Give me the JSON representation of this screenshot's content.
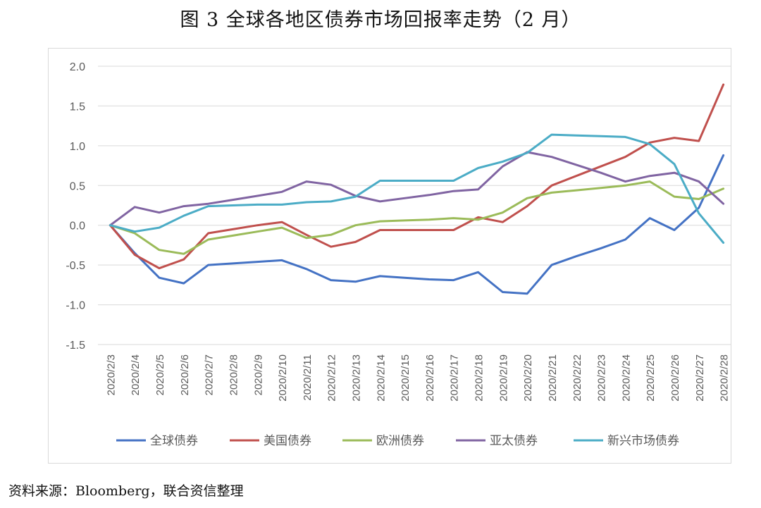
{
  "title": "图 3 全球各地区债券市场回报率走势（2 月）",
  "source": "资料来源：Bloomberg，联合资信整理",
  "chart_data": {
    "type": "line",
    "x": [
      "2020/2/3",
      "2020/2/4",
      "2020/2/5",
      "2020/2/6",
      "2020/2/7",
      "2020/2/8",
      "2020/2/9",
      "2020/2/10",
      "2020/2/11",
      "2020/2/12",
      "2020/2/13",
      "2020/2/14",
      "2020/2/15",
      "2020/2/16",
      "2020/2/17",
      "2020/2/18",
      "2020/2/19",
      "2020/2/20",
      "2020/2/21",
      "2020/2/22",
      "2020/2/23",
      "2020/2/24",
      "2020/2/25",
      "2020/2/26",
      "2020/2/27",
      "2020/2/28"
    ],
    "y_ticks": [
      "2.0",
      "1.5",
      "1.0",
      "0.5",
      "0.0",
      "-0.5",
      "-1.0",
      "-1.5"
    ],
    "ylim": [
      -1.5,
      2.0
    ],
    "grid": true,
    "legend_position": "bottom",
    "series": [
      {
        "name": "全球债券",
        "color": "#4472c4",
        "values": [
          0.0,
          -0.35,
          -0.66,
          -0.73,
          -0.5,
          -0.48,
          -0.46,
          -0.44,
          -0.55,
          -0.69,
          -0.71,
          -0.64,
          -0.66,
          -0.68,
          -0.69,
          -0.59,
          -0.84,
          -0.86,
          -0.5,
          -0.39,
          -0.29,
          -0.18,
          0.09,
          -0.06,
          0.22,
          0.88
        ]
      },
      {
        "name": "美国债券",
        "color": "#c0504d",
        "values": [
          0.0,
          -0.37,
          -0.54,
          -0.43,
          -0.1,
          -0.05,
          0.0,
          0.04,
          -0.12,
          -0.27,
          -0.21,
          -0.06,
          -0.06,
          -0.06,
          -0.06,
          0.1,
          0.04,
          0.24,
          0.5,
          0.62,
          0.74,
          0.86,
          1.04,
          1.1,
          1.06,
          1.77
        ]
      },
      {
        "name": "欧洲债券",
        "color": "#9bbb59",
        "values": [
          0.0,
          -0.1,
          -0.31,
          -0.36,
          -0.18,
          -0.13,
          -0.08,
          -0.03,
          -0.16,
          -0.12,
          0.0,
          0.05,
          0.06,
          0.07,
          0.09,
          0.07,
          0.16,
          0.34,
          0.41,
          0.44,
          0.47,
          0.5,
          0.55,
          0.36,
          0.33,
          0.46
        ]
      },
      {
        "name": "亚太债券",
        "color": "#8064a2",
        "values": [
          0.0,
          0.23,
          0.16,
          0.24,
          0.27,
          0.32,
          0.37,
          0.42,
          0.55,
          0.51,
          0.37,
          0.3,
          0.34,
          0.38,
          0.43,
          0.45,
          0.74,
          0.92,
          0.86,
          0.76,
          0.66,
          0.55,
          0.62,
          0.66,
          0.55,
          0.27
        ]
      },
      {
        "name": "新兴市场债券",
        "color": "#4bacc6",
        "values": [
          0.0,
          -0.08,
          -0.03,
          0.12,
          0.24,
          0.25,
          0.26,
          0.26,
          0.29,
          0.3,
          0.36,
          0.56,
          0.56,
          0.56,
          0.56,
          0.72,
          0.8,
          0.91,
          1.14,
          1.13,
          1.12,
          1.11,
          1.02,
          0.77,
          0.15,
          -0.22
        ]
      }
    ]
  }
}
